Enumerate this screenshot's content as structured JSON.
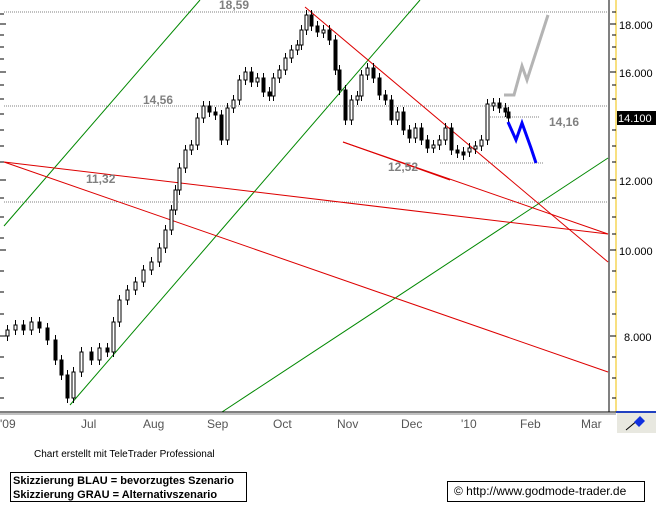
{
  "chart_data": {
    "type": "candlestick",
    "title": "",
    "xlabel": "",
    "ylabel": "",
    "ylim": [
      6.5,
      18.8
    ],
    "y_scale": "log",
    "y_ticks": [
      "18.000",
      "16.000",
      "14.100",
      "12.000",
      "10.000",
      "8.000"
    ],
    "current_price_label": "14.100",
    "x_ticks": [
      "'09",
      "Jul",
      "Aug",
      "Sep",
      "Oct",
      "Nov",
      "Dec",
      "'10",
      "Feb",
      "Mar"
    ],
    "horizontal_levels": [
      {
        "label": "18,59",
        "value": 18.59
      },
      {
        "label": "14,56",
        "value": 14.56
      },
      {
        "label": "14,16",
        "value": 14.16
      },
      {
        "label": "12,52",
        "value": 12.52
      },
      {
        "label": "11,32",
        "value": 11.32
      }
    ],
    "trend_lines": {
      "green": [
        "upper channel line from Jun 2009 low",
        "lower channel line from Jun 2009 low",
        "long-term support from Sep 2009"
      ],
      "red": [
        "downtrend from Oct 2009 high 18,59",
        "lower wedge line from Nov 2009",
        "long-term resistance lines"
      ]
    },
    "scenarios": [
      {
        "name": "Blau (bevorzugt)",
        "color": "#0000ff",
        "path": [
          14.16,
          13.2,
          13.9,
          12.52
        ]
      },
      {
        "name": "Grau (alternativ)",
        "color": "#b4b4b4",
        "path": [
          14.8,
          14.8,
          16.2,
          15.4,
          18.3
        ]
      }
    ],
    "approx_close_series": {
      "months": [
        "Jun",
        "Jul",
        "Aug",
        "Sep",
        "Oct",
        "Nov",
        "Dec",
        "Jan",
        "Feb"
      ],
      "values": [
        7.5,
        9.3,
        12.5,
        15.2,
        17.0,
        14.3,
        12.8,
        14.2,
        13.5
      ]
    }
  },
  "axis": {
    "y_labels": [
      "18.000",
      "16.000",
      "12.000",
      "10.000",
      "8.000"
    ],
    "current_price": "14.100",
    "x_labels": [
      "'09",
      "Jul",
      "Aug",
      "Sep",
      "Oct",
      "Nov",
      "Dec",
      "'10",
      "Feb",
      "Mar"
    ]
  },
  "annotations": {
    "high": "18,59",
    "level_1456": "14,56",
    "level_1416": "14,16",
    "level_1252": "12,52",
    "level_1132": "11,32"
  },
  "footer": {
    "credit": "Chart erstellt mit TeleTrader Professional",
    "legend_line1": "Skizzierung BLAU = bevorzugtes Szenario",
    "legend_line2": "Skizzierung GRAU = Alternativszenario",
    "copyright": "© http://www.godmode-trader.de"
  },
  "colors": {
    "up_candle": "#ffffff",
    "down_candle": "#000000",
    "support_line": "#008800",
    "resistance_line": "#dd0000",
    "level_line": "#808080",
    "preferred_scenario": "#0000ff",
    "alternative_scenario": "#b4b4b4",
    "axis_accent": "#f0c000"
  }
}
